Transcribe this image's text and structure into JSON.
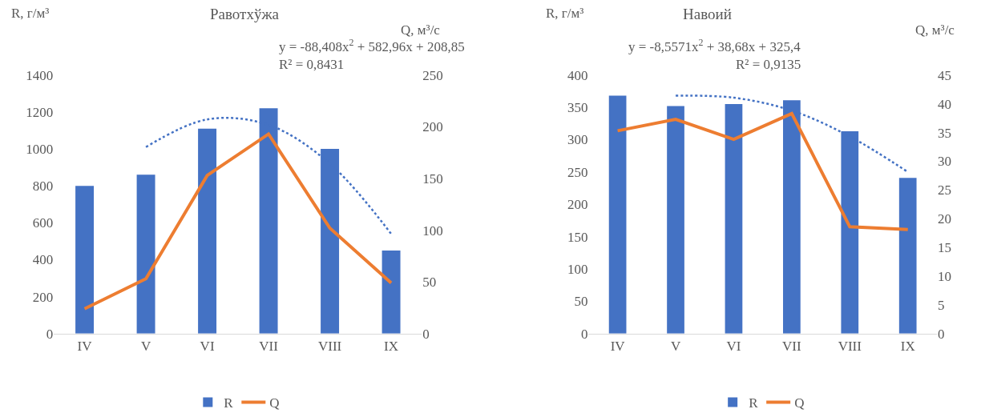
{
  "chart_data": [
    {
      "type": "bar",
      "title": "Равотхўжа",
      "ylabel": "R, г/м³",
      "y2label": "Q, м³/с",
      "categories": [
        "IV",
        "V",
        "VI",
        "VII",
        "VIII",
        "IX"
      ],
      "series": [
        {
          "name": "R",
          "color": "#4472c4",
          "values": [
            800,
            860,
            1110,
            1220,
            1000,
            450
          ]
        },
        {
          "name": "Q",
          "type": "line",
          "axis": "y2",
          "color": "#ed7d31",
          "line_style": "solid",
          "values": [
            24,
            53,
            153,
            193,
            102,
            49
          ]
        },
        {
          "type": "line",
          "color": "#4472c4",
          "line_style": "dotted",
          "values": [
            null,
            1010,
            1160,
            1130,
            920,
            540
          ]
        }
      ],
      "ylim": [
        0,
        1400
      ],
      "yticks": [
        0,
        200,
        400,
        600,
        800,
        1000,
        1200,
        1400
      ],
      "y2lim": [
        0,
        250
      ],
      "y2ticks": [
        0,
        50,
        100,
        150,
        200,
        250
      ],
      "annotations": [
        "y = -88,408x$^{2}$ + 582,96x + 208,85",
        "R² = 0,8431"
      ],
      "legend": "bottom",
      "grid": false,
      "marker": "none"
    },
    {
      "type": "bar",
      "title": "Навоий",
      "ylabel": "R, г/м³",
      "y2label": "Q, м³/с",
      "categories": [
        "IV",
        "V",
        "VI",
        "VII",
        "VIII",
        "IX"
      ],
      "series": [
        {
          "name": "R",
          "color": "#4472c4",
          "values": [
            368,
            352,
            355,
            361,
            313,
            241
          ]
        },
        {
          "name": "Q",
          "type": "line",
          "axis": "y2",
          "color": "#ed7d31",
          "line_style": "solid",
          "values": [
            35.3,
            37.3,
            33.8,
            38.3,
            18.6,
            18.1
          ]
        },
        {
          "type": "line",
          "color": "#4472c4",
          "line_style": "dotted",
          "values": [
            null,
            368,
            365,
            345,
            305,
            250
          ]
        }
      ],
      "ylim": [
        0,
        400
      ],
      "yticks": [
        0,
        50,
        100,
        150,
        200,
        250,
        300,
        350,
        400
      ],
      "y2lim": [
        0,
        45
      ],
      "y2ticks": [
        0,
        5,
        10,
        15,
        20,
        25,
        30,
        35,
        40,
        45
      ],
      "annotations": [
        "y = -8,5571x$^{2}$ + 38,68x + 325,4",
        "R² = 0,9135"
      ],
      "legend": "bottom",
      "grid": false,
      "marker": "none"
    }
  ]
}
